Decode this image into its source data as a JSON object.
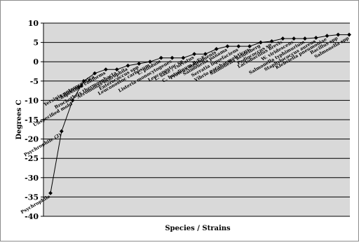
{
  "chart_data": {
    "type": "line",
    "title": "",
    "xlabel": "Species  /  Strains",
    "ylabel": "Degrees C",
    "ylim": [
      -40,
      10
    ],
    "yticks": [
      10,
      5,
      0,
      -5,
      -10,
      -15,
      -20,
      -25,
      -30,
      -35,
      -40
    ],
    "grid": true,
    "legend": "none",
    "colors": {
      "background": "#d9d9d9",
      "line": "#000000",
      "marker": "#000000"
    },
    "categories": [
      "Psychrophile",
      "Psychrophile (2)",
      "Unspecified mold",
      "Vibrio spp",
      "Yersinia enterocolitica",
      "Unspecified coliforms",
      "Brochothrix thermosphacta",
      "Aeromonas hydrophila",
      "Enterococcus spp",
      "Leuconostoc carnosum",
      "L. pilidum",
      "Listeria monocytogenes",
      "Leuconostoc sp",
      "L. sake / curvatus",
      "C. botulinum B,E,F",
      "Proteus aggiobuenis",
      "Salmonella panama",
      "Serratia liquefaciens",
      "Vibrio parahaemolyticus",
      "Salmonella heidelberg",
      "Pediococcus sp",
      "Lactobacillus brevis",
      "W. viridescens",
      "Salmonella typhimurium",
      "Staphylococcus aureus",
      "Klebsiella pneumoniae",
      "Bacillus spp",
      "Salmonella spp"
    ],
    "series": [
      {
        "values": [
          -34,
          -18,
          -10,
          -5,
          -3,
          -2,
          -2,
          -1,
          -0.5,
          0,
          1,
          1,
          1,
          2,
          2,
          3.3,
          4,
          4,
          4,
          5,
          5.3,
          6,
          6,
          6,
          6.2,
          6.7,
          7,
          7
        ]
      }
    ]
  }
}
